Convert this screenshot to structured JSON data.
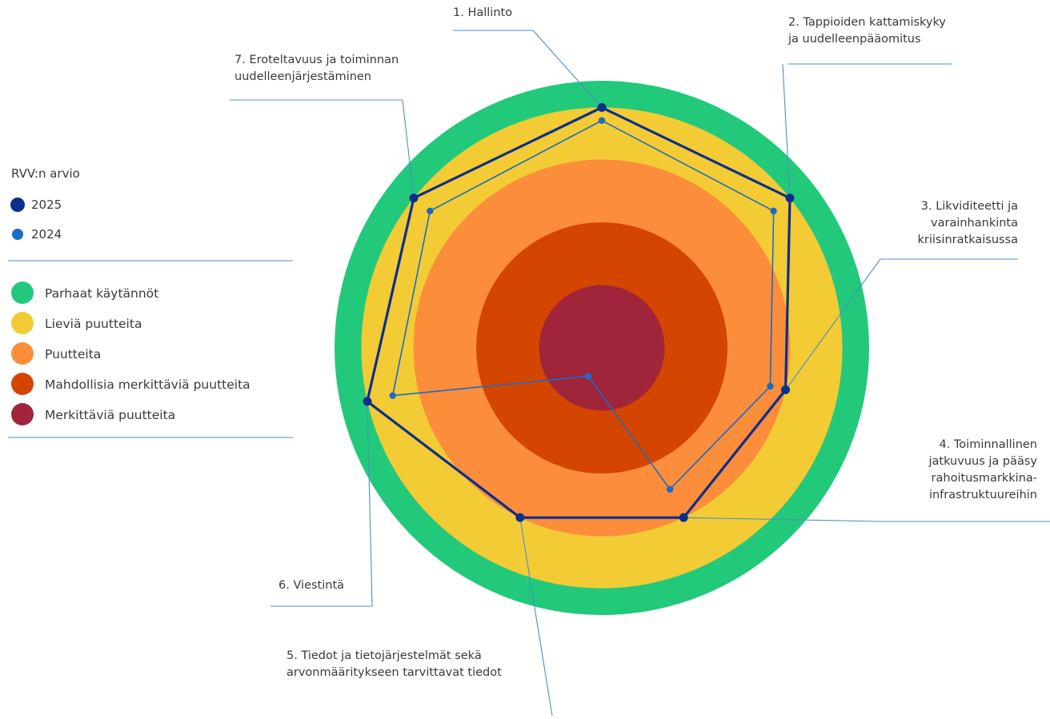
{
  "chart_data": {
    "type": "radar",
    "legend_title": "RVV:n arvio",
    "series": [
      {
        "name": "2025",
        "color": "#0b2f8a",
        "values": [
          4,
          4,
          3,
          3,
          3,
          4,
          4
        ]
      },
      {
        "name": "2024",
        "color": "#1b6cc4",
        "values": [
          3.75,
          3.6,
          2.75,
          2.5,
          0.5,
          3.5,
          3.6
        ]
      }
    ],
    "axes": [
      [
        "1. Hallinto"
      ],
      [
        "2. Tappioiden kattamiskyky",
        "ja uudelleenpääomitus"
      ],
      [
        "3. Likviditeetti ja",
        "varainhankinta",
        "kriisinratkaisussa"
      ],
      [
        "4. Toiminnallinen",
        "jatkuvuus ja pääsy",
        "rahoitusmarkkina-",
        "infrastruktuureihin"
      ],
      [
        "5. Tiedot ja tietojärjestelmät sekä",
        "arvonmääritykseen tarvittavat tiedot"
      ],
      [
        "6. Viestintä"
      ],
      [
        "7. Eroteltavuus ja toiminnan",
        "uudelleenjärjestäminen"
      ]
    ],
    "levels": [
      {
        "label": "Parhaat käytännöt",
        "color": "#22c97a"
      },
      {
        "label": "Lieviä puutteita",
        "color": "#f2cb35"
      },
      {
        "label": "Puutteita",
        "color": "#fb8d3b"
      },
      {
        "label": "Mahdollisia merkittäviä puutteita",
        "color": "#d44500"
      },
      {
        "label": "Merkittäviä puutteita",
        "color": "#a0243a"
      }
    ],
    "scale": {
      "min": 0,
      "max": 5
    }
  }
}
